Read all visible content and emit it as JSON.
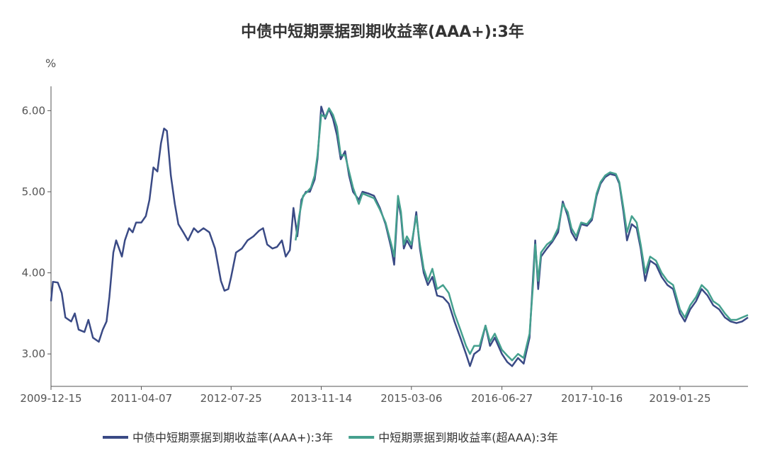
{
  "chart_data": {
    "type": "line",
    "title": "中债中短期票据到期收益率(AAA+):3年",
    "y_unit": "%",
    "ylim": [
      2.6,
      6.3
    ],
    "y_ticks": [
      "3.00",
      "4.00",
      "5.00",
      "6.00"
    ],
    "x_ticks": [
      "2009-12-15",
      "2011-04-07",
      "2012-07-25",
      "2013-11-14",
      "2015-03-06",
      "2016-06-27",
      "2017-10-16",
      "2019-01-25"
    ],
    "x_range": [
      "2009-12-15",
      "2020-01-20"
    ],
    "legend_position": "bottom-center",
    "grid": false,
    "series": [
      {
        "name": "中债中短期票据到期收益率(AAA+):3年",
        "color": "#3a4a85",
        "points": [
          [
            "2009-12-15",
            3.65
          ],
          [
            "2009-12-25",
            3.89
          ],
          [
            "2010-01-20",
            3.88
          ],
          [
            "2010-02-10",
            3.75
          ],
          [
            "2010-03-01",
            3.45
          ],
          [
            "2010-04-01",
            3.4
          ],
          [
            "2010-04-20",
            3.5
          ],
          [
            "2010-05-10",
            3.3
          ],
          [
            "2010-06-10",
            3.27
          ],
          [
            "2010-07-01",
            3.42
          ],
          [
            "2010-07-25",
            3.2
          ],
          [
            "2010-08-25",
            3.15
          ],
          [
            "2010-09-15",
            3.3
          ],
          [
            "2010-10-05",
            3.4
          ],
          [
            "2010-10-20",
            3.7
          ],
          [
            "2010-11-10",
            4.25
          ],
          [
            "2010-11-25",
            4.4
          ],
          [
            "2010-12-10",
            4.3
          ],
          [
            "2010-12-25",
            4.2
          ],
          [
            "2011-01-10",
            4.4
          ],
          [
            "2011-02-01",
            4.55
          ],
          [
            "2011-02-20",
            4.5
          ],
          [
            "2011-03-10",
            4.62
          ],
          [
            "2011-04-07",
            4.62
          ],
          [
            "2011-05-01",
            4.7
          ],
          [
            "2011-05-20",
            4.9
          ],
          [
            "2011-06-10",
            5.3
          ],
          [
            "2011-07-01",
            5.25
          ],
          [
            "2011-07-20",
            5.6
          ],
          [
            "2011-08-05",
            5.78
          ],
          [
            "2011-08-20",
            5.75
          ],
          [
            "2011-09-10",
            5.2
          ],
          [
            "2011-10-01",
            4.85
          ],
          [
            "2011-10-20",
            4.6
          ],
          [
            "2011-11-15",
            4.5
          ],
          [
            "2011-12-10",
            4.4
          ],
          [
            "2012-01-10",
            4.55
          ],
          [
            "2012-02-01",
            4.5
          ],
          [
            "2012-03-01",
            4.55
          ],
          [
            "2012-04-01",
            4.5
          ],
          [
            "2012-05-01",
            4.3
          ],
          [
            "2012-06-01",
            3.9
          ],
          [
            "2012-06-20",
            3.78
          ],
          [
            "2012-07-10",
            3.8
          ],
          [
            "2012-07-25",
            3.95
          ],
          [
            "2012-08-20",
            4.25
          ],
          [
            "2012-09-20",
            4.3
          ],
          [
            "2012-10-20",
            4.4
          ],
          [
            "2012-11-20",
            4.45
          ],
          [
            "2012-12-20",
            4.52
          ],
          [
            "2013-01-10",
            4.55
          ],
          [
            "2013-02-01",
            4.35
          ],
          [
            "2013-03-01",
            4.3
          ],
          [
            "2013-03-25",
            4.32
          ],
          [
            "2013-04-20",
            4.4
          ],
          [
            "2013-05-10",
            4.2
          ],
          [
            "2013-06-01",
            4.28
          ],
          [
            "2013-06-20",
            4.8
          ],
          [
            "2013-07-10",
            4.45
          ],
          [
            "2013-08-01",
            4.9
          ],
          [
            "2013-08-25",
            5.0
          ],
          [
            "2013-09-15",
            5.0
          ],
          [
            "2013-10-10",
            5.15
          ],
          [
            "2013-10-25",
            5.4
          ],
          [
            "2013-11-14",
            6.05
          ],
          [
            "2013-12-05",
            5.9
          ],
          [
            "2013-12-25",
            6.02
          ],
          [
            "2014-01-15",
            5.9
          ],
          [
            "2014-02-05",
            5.7
          ],
          [
            "2014-02-25",
            5.4
          ],
          [
            "2014-03-20",
            5.5
          ],
          [
            "2014-04-10",
            5.2
          ],
          [
            "2014-05-01",
            5.0
          ],
          [
            "2014-06-01",
            4.9
          ],
          [
            "2014-06-20",
            5.0
          ],
          [
            "2014-07-20",
            4.98
          ],
          [
            "2014-08-20",
            4.95
          ],
          [
            "2014-09-20",
            4.8
          ],
          [
            "2014-10-20",
            4.6
          ],
          [
            "2014-11-20",
            4.3
          ],
          [
            "2014-12-05",
            4.1
          ],
          [
            "2014-12-25",
            4.9
          ],
          [
            "2015-01-10",
            4.7
          ],
          [
            "2015-01-25",
            4.3
          ],
          [
            "2015-02-10",
            4.4
          ],
          [
            "2015-03-06",
            4.3
          ],
          [
            "2015-04-01",
            4.75
          ],
          [
            "2015-04-20",
            4.3
          ],
          [
            "2015-05-10",
            4.0
          ],
          [
            "2015-06-01",
            3.85
          ],
          [
            "2015-06-25",
            3.95
          ],
          [
            "2015-07-20",
            3.72
          ],
          [
            "2015-08-20",
            3.7
          ],
          [
            "2015-09-20",
            3.62
          ],
          [
            "2015-10-20",
            3.4
          ],
          [
            "2015-11-20",
            3.2
          ],
          [
            "2015-12-20",
            3.0
          ],
          [
            "2016-01-10",
            2.85
          ],
          [
            "2016-02-01",
            3.0
          ],
          [
            "2016-03-01",
            3.05
          ],
          [
            "2016-04-01",
            3.35
          ],
          [
            "2016-04-25",
            3.1
          ],
          [
            "2016-05-20",
            3.2
          ],
          [
            "2016-06-27",
            3.0
          ],
          [
            "2016-07-25",
            2.9
          ],
          [
            "2016-08-20",
            2.85
          ],
          [
            "2016-09-20",
            2.95
          ],
          [
            "2016-10-20",
            2.88
          ],
          [
            "2016-11-20",
            3.2
          ],
          [
            "2016-12-10",
            4.0
          ],
          [
            "2016-12-20",
            4.4
          ],
          [
            "2017-01-05",
            3.8
          ],
          [
            "2017-01-20",
            4.2
          ],
          [
            "2017-02-20",
            4.3
          ],
          [
            "2017-03-20",
            4.38
          ],
          [
            "2017-04-20",
            4.5
          ],
          [
            "2017-05-15",
            4.88
          ],
          [
            "2017-06-10",
            4.7
          ],
          [
            "2017-06-30",
            4.5
          ],
          [
            "2017-07-25",
            4.4
          ],
          [
            "2017-08-20",
            4.6
          ],
          [
            "2017-09-20",
            4.58
          ],
          [
            "2017-10-16",
            4.65
          ],
          [
            "2017-11-10",
            4.95
          ],
          [
            "2017-12-01",
            5.1
          ],
          [
            "2017-12-25",
            5.18
          ],
          [
            "2018-01-20",
            5.22
          ],
          [
            "2018-02-20",
            5.2
          ],
          [
            "2018-03-10",
            5.1
          ],
          [
            "2018-04-01",
            4.75
          ],
          [
            "2018-04-20",
            4.4
          ],
          [
            "2018-05-15",
            4.6
          ],
          [
            "2018-06-10",
            4.55
          ],
          [
            "2018-07-01",
            4.3
          ],
          [
            "2018-07-25",
            3.9
          ],
          [
            "2018-08-20",
            4.15
          ],
          [
            "2018-09-20",
            4.1
          ],
          [
            "2018-10-20",
            3.95
          ],
          [
            "2018-11-20",
            3.85
          ],
          [
            "2018-12-20",
            3.8
          ],
          [
            "2019-01-25",
            3.5
          ],
          [
            "2019-02-20",
            3.4
          ],
          [
            "2019-03-20",
            3.55
          ],
          [
            "2019-04-20",
            3.65
          ],
          [
            "2019-05-20",
            3.8
          ],
          [
            "2019-06-20",
            3.72
          ],
          [
            "2019-07-20",
            3.6
          ],
          [
            "2019-08-20",
            3.55
          ],
          [
            "2019-09-20",
            3.45
          ],
          [
            "2019-10-20",
            3.4
          ],
          [
            "2019-11-20",
            3.38
          ],
          [
            "2019-12-20",
            3.4
          ],
          [
            "2020-01-20",
            3.45
          ]
        ]
      },
      {
        "name": "中短期票据到期收益率(超AAA):3年",
        "color": "#45a08e",
        "points": [
          [
            "2013-07-01",
            4.4
          ],
          [
            "2013-07-20",
            4.7
          ],
          [
            "2013-08-10",
            4.95
          ],
          [
            "2013-09-01",
            5.0
          ],
          [
            "2013-09-20",
            5.05
          ],
          [
            "2013-10-10",
            5.2
          ],
          [
            "2013-10-25",
            5.45
          ],
          [
            "2013-11-14",
            5.95
          ],
          [
            "2013-12-05",
            5.92
          ],
          [
            "2013-12-25",
            6.03
          ],
          [
            "2014-01-15",
            5.95
          ],
          [
            "2014-02-05",
            5.8
          ],
          [
            "2014-02-25",
            5.45
          ],
          [
            "2014-03-20",
            5.45
          ],
          [
            "2014-04-10",
            5.25
          ],
          [
            "2014-05-01",
            5.05
          ],
          [
            "2014-06-01",
            4.85
          ],
          [
            "2014-06-20",
            4.98
          ],
          [
            "2014-07-20",
            4.95
          ],
          [
            "2014-08-20",
            4.92
          ],
          [
            "2014-09-20",
            4.78
          ],
          [
            "2014-10-20",
            4.62
          ],
          [
            "2014-11-20",
            4.35
          ],
          [
            "2014-12-05",
            4.2
          ],
          [
            "2014-12-25",
            4.95
          ],
          [
            "2015-01-10",
            4.75
          ],
          [
            "2015-01-25",
            4.35
          ],
          [
            "2015-02-10",
            4.45
          ],
          [
            "2015-03-06",
            4.35
          ],
          [
            "2015-04-01",
            4.7
          ],
          [
            "2015-04-20",
            4.35
          ],
          [
            "2015-05-10",
            4.05
          ],
          [
            "2015-06-01",
            3.9
          ],
          [
            "2015-06-25",
            4.05
          ],
          [
            "2015-07-20",
            3.8
          ],
          [
            "2015-08-20",
            3.85
          ],
          [
            "2015-09-20",
            3.75
          ],
          [
            "2015-10-20",
            3.5
          ],
          [
            "2015-11-20",
            3.3
          ],
          [
            "2015-12-20",
            3.1
          ],
          [
            "2016-01-10",
            3.0
          ],
          [
            "2016-02-01",
            3.1
          ],
          [
            "2016-03-01",
            3.1
          ],
          [
            "2016-04-01",
            3.35
          ],
          [
            "2016-04-25",
            3.15
          ],
          [
            "2016-05-20",
            3.25
          ],
          [
            "2016-06-27",
            3.05
          ],
          [
            "2016-07-25",
            2.98
          ],
          [
            "2016-08-20",
            2.92
          ],
          [
            "2016-09-20",
            3.0
          ],
          [
            "2016-10-20",
            2.95
          ],
          [
            "2016-11-20",
            3.25
          ],
          [
            "2016-12-10",
            3.9
          ],
          [
            "2016-12-20",
            4.35
          ],
          [
            "2017-01-05",
            3.9
          ],
          [
            "2017-01-20",
            4.25
          ],
          [
            "2017-02-20",
            4.35
          ],
          [
            "2017-03-20",
            4.4
          ],
          [
            "2017-04-20",
            4.55
          ],
          [
            "2017-05-15",
            4.85
          ],
          [
            "2017-06-10",
            4.75
          ],
          [
            "2017-06-30",
            4.55
          ],
          [
            "2017-07-25",
            4.45
          ],
          [
            "2017-08-20",
            4.62
          ],
          [
            "2017-09-20",
            4.6
          ],
          [
            "2017-10-16",
            4.68
          ],
          [
            "2017-11-10",
            4.98
          ],
          [
            "2017-12-01",
            5.12
          ],
          [
            "2017-12-25",
            5.2
          ],
          [
            "2018-01-20",
            5.24
          ],
          [
            "2018-02-20",
            5.22
          ],
          [
            "2018-03-10",
            5.12
          ],
          [
            "2018-04-01",
            4.8
          ],
          [
            "2018-04-20",
            4.5
          ],
          [
            "2018-05-15",
            4.7
          ],
          [
            "2018-06-10",
            4.62
          ],
          [
            "2018-07-01",
            4.35
          ],
          [
            "2018-07-25",
            4.0
          ],
          [
            "2018-08-20",
            4.2
          ],
          [
            "2018-09-20",
            4.15
          ],
          [
            "2018-10-20",
            4.0
          ],
          [
            "2018-11-20",
            3.9
          ],
          [
            "2018-12-20",
            3.85
          ],
          [
            "2019-01-25",
            3.55
          ],
          [
            "2019-02-20",
            3.45
          ],
          [
            "2019-03-20",
            3.6
          ],
          [
            "2019-04-20",
            3.7
          ],
          [
            "2019-05-20",
            3.85
          ],
          [
            "2019-06-20",
            3.78
          ],
          [
            "2019-07-20",
            3.65
          ],
          [
            "2019-08-20",
            3.6
          ],
          [
            "2019-09-20",
            3.5
          ],
          [
            "2019-10-20",
            3.42
          ],
          [
            "2019-11-20",
            3.42
          ],
          [
            "2019-12-20",
            3.45
          ],
          [
            "2020-01-20",
            3.48
          ]
        ]
      }
    ]
  }
}
